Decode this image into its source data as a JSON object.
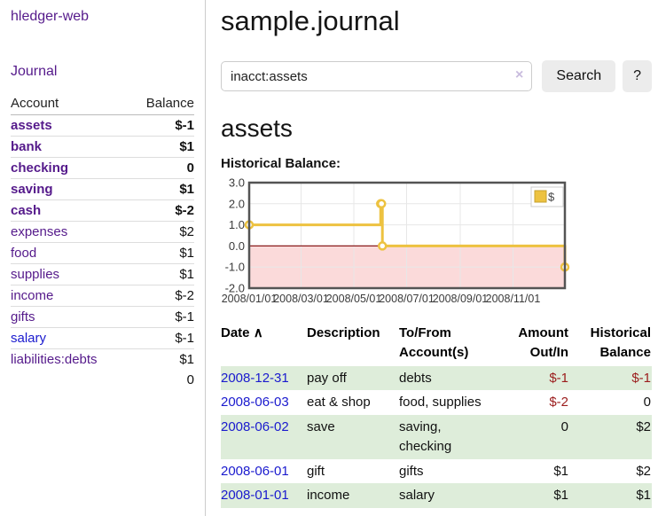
{
  "app": {
    "brand": "hledger-web",
    "nav_journal": "Journal"
  },
  "colors": {
    "link_visited_purple": "#551A8B",
    "link_blue": "#1a1ace",
    "negative_strong": "#9b1c1c",
    "negative_soft": "#c46a76",
    "row_stripe_green": "#deedda",
    "button_gray": "#ececec",
    "chart_gold": "#edc240",
    "chart_negative_fill": "#fbdada",
    "chart_zero_line": "#8b1d1d"
  },
  "icons": {
    "sort_asc": "∧",
    "clear": "×"
  },
  "sidebar": {
    "accounts_table": {
      "headers": {
        "account": "Account",
        "balance": "Balance"
      },
      "rows": [
        {
          "name": "assets",
          "level": 1,
          "bold": true,
          "balance": "$-1",
          "balance_style": "neg-strong"
        },
        {
          "name": "bank",
          "level": 2,
          "bold": true,
          "balance": "$1",
          "balance_style": "normal"
        },
        {
          "name": "checking",
          "level": 3,
          "bold": true,
          "balance": "0",
          "balance_style": "normal"
        },
        {
          "name": "saving",
          "level": 3,
          "bold": true,
          "balance": "$1",
          "balance_style": "normal"
        },
        {
          "name": "cash",
          "level": 2,
          "bold": true,
          "balance": "$-2",
          "balance_style": "neg-strong"
        },
        {
          "name": "expenses",
          "level": 1,
          "bold": false,
          "balance": "$2",
          "balance_style": "normal"
        },
        {
          "name": "food",
          "level": 2,
          "bold": false,
          "balance": "$1",
          "balance_style": "normal"
        },
        {
          "name": "supplies",
          "level": 2,
          "bold": false,
          "balance": "$1",
          "balance_style": "normal"
        },
        {
          "name": "income",
          "level": 1,
          "bold": false,
          "balance": "$-2",
          "balance_style": "neg-soft"
        },
        {
          "name": "gifts",
          "level": 2,
          "bold": false,
          "balance": "$-1",
          "balance_style": "neg-soft"
        },
        {
          "name": "salary",
          "level": 2,
          "bold": false,
          "link_style": "unvisited",
          "balance": "$-1",
          "balance_style": "neg-soft"
        },
        {
          "name": "liabilities:debts",
          "level": 1,
          "bold": false,
          "balance": "$1",
          "balance_style": "normal"
        }
      ],
      "total": "0"
    }
  },
  "header": {
    "title": "sample.journal"
  },
  "search": {
    "value": "inacct:assets",
    "button": "Search",
    "help_button": "?"
  },
  "account_page": {
    "title": "assets",
    "chart_label": "Historical Balance:"
  },
  "chart_data": {
    "type": "line",
    "title": "Historical Balance",
    "step": true,
    "points": [
      [
        "2008-01-01",
        1
      ],
      [
        "2008-06-01",
        2
      ],
      [
        "2008-06-02",
        2
      ],
      [
        "2008-06-03",
        0
      ],
      [
        "2008-12-31",
        -1
      ]
    ],
    "x_range": [
      "2008-01-01",
      "2008-12-31"
    ],
    "x_ticks": [
      "2008/01/01",
      "2008/03/01",
      "2008/05/01",
      "2008/07/01",
      "2008/09/01",
      "2008/11/01"
    ],
    "y_ticks": [
      3.0,
      2.0,
      1.0,
      0.0,
      -1.0,
      -2.0
    ],
    "ylim": [
      -2,
      3
    ],
    "grid": true,
    "legend": [
      {
        "label": "$",
        "color": "#edc240"
      }
    ],
    "legend_position": "top-right",
    "line_color": "#edc240",
    "negative_region_color": "#fbdada",
    "zero_line_color": "#8b1d1d"
  },
  "register": {
    "headers": {
      "date": "Date",
      "description": "Description",
      "account_line1": "To/From",
      "account_line2": "Account(s)",
      "amount_line1": "Amount",
      "amount_line2": "Out/In",
      "balance_line1": "Historical",
      "balance_line2": "Balance"
    },
    "rows": [
      {
        "date": "2008-12-31",
        "description": "pay off",
        "accounts": "debts",
        "amount": "$-1",
        "amount_style": "neg",
        "balance": "$-1",
        "balance_style": "neg"
      },
      {
        "date": "2008-06-03",
        "description": "eat & shop",
        "accounts": "food, supplies",
        "amount": "$-2",
        "amount_style": "neg",
        "balance": "0",
        "balance_style": "normal"
      },
      {
        "date": "2008-06-02",
        "description": "save",
        "accounts": "saving, checking",
        "amount": "0",
        "amount_style": "normal",
        "balance": "$2",
        "balance_style": "normal"
      },
      {
        "date": "2008-06-01",
        "description": "gift",
        "accounts": "gifts",
        "amount": "$1",
        "amount_style": "normal",
        "balance": "$2",
        "balance_style": "normal"
      },
      {
        "date": "2008-01-01",
        "description": "income",
        "accounts": "salary",
        "amount": "$1",
        "amount_style": "normal",
        "balance": "$1",
        "balance_style": "normal"
      }
    ]
  }
}
